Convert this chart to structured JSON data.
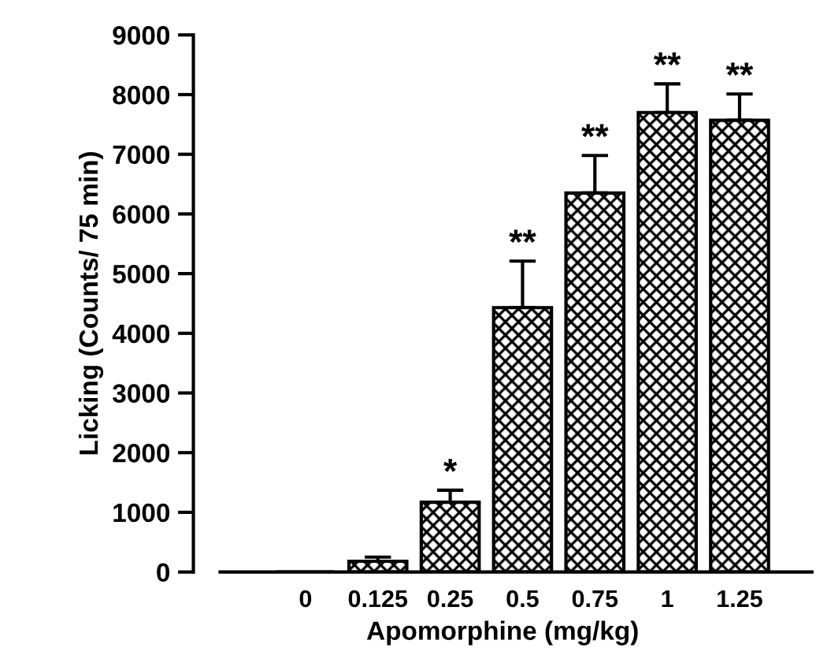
{
  "chart_data": {
    "type": "bar",
    "xlabel": "Apomorphine (mg/kg)",
    "ylabel": "Licking (Counts/ 75 min)",
    "categories": [
      "0",
      "0.125",
      "0.25",
      "0.5",
      "0.75",
      "1",
      "1.25"
    ],
    "values": [
      0,
      180,
      1170,
      4430,
      6350,
      7700,
      7570
    ],
    "errors": [
      null,
      [
        180,
        250
      ],
      [
        1170,
        1370
      ],
      [
        4430,
        5210
      ],
      [
        6350,
        6980
      ],
      [
        7700,
        8180
      ],
      [
        7570,
        8010
      ]
    ],
    "color": "#000000",
    "ylim": [
      0,
      9000
    ],
    "yticks": [
      0,
      1000,
      2000,
      3000,
      4000,
      5000,
      6000,
      7000,
      8000,
      9000
    ],
    "grid": false,
    "annotations": [
      {
        "text": "*",
        "x": "0.25",
        "y": 1370
      },
      {
        "text": "**",
        "x": "0.5",
        "y": 5210
      },
      {
        "text": "**",
        "x": "0.75",
        "y": 6980
      },
      {
        "text": "**",
        "x": "1",
        "y": 8180
      },
      {
        "text": "**",
        "x": "1.25",
        "y": 8010
      }
    ]
  }
}
